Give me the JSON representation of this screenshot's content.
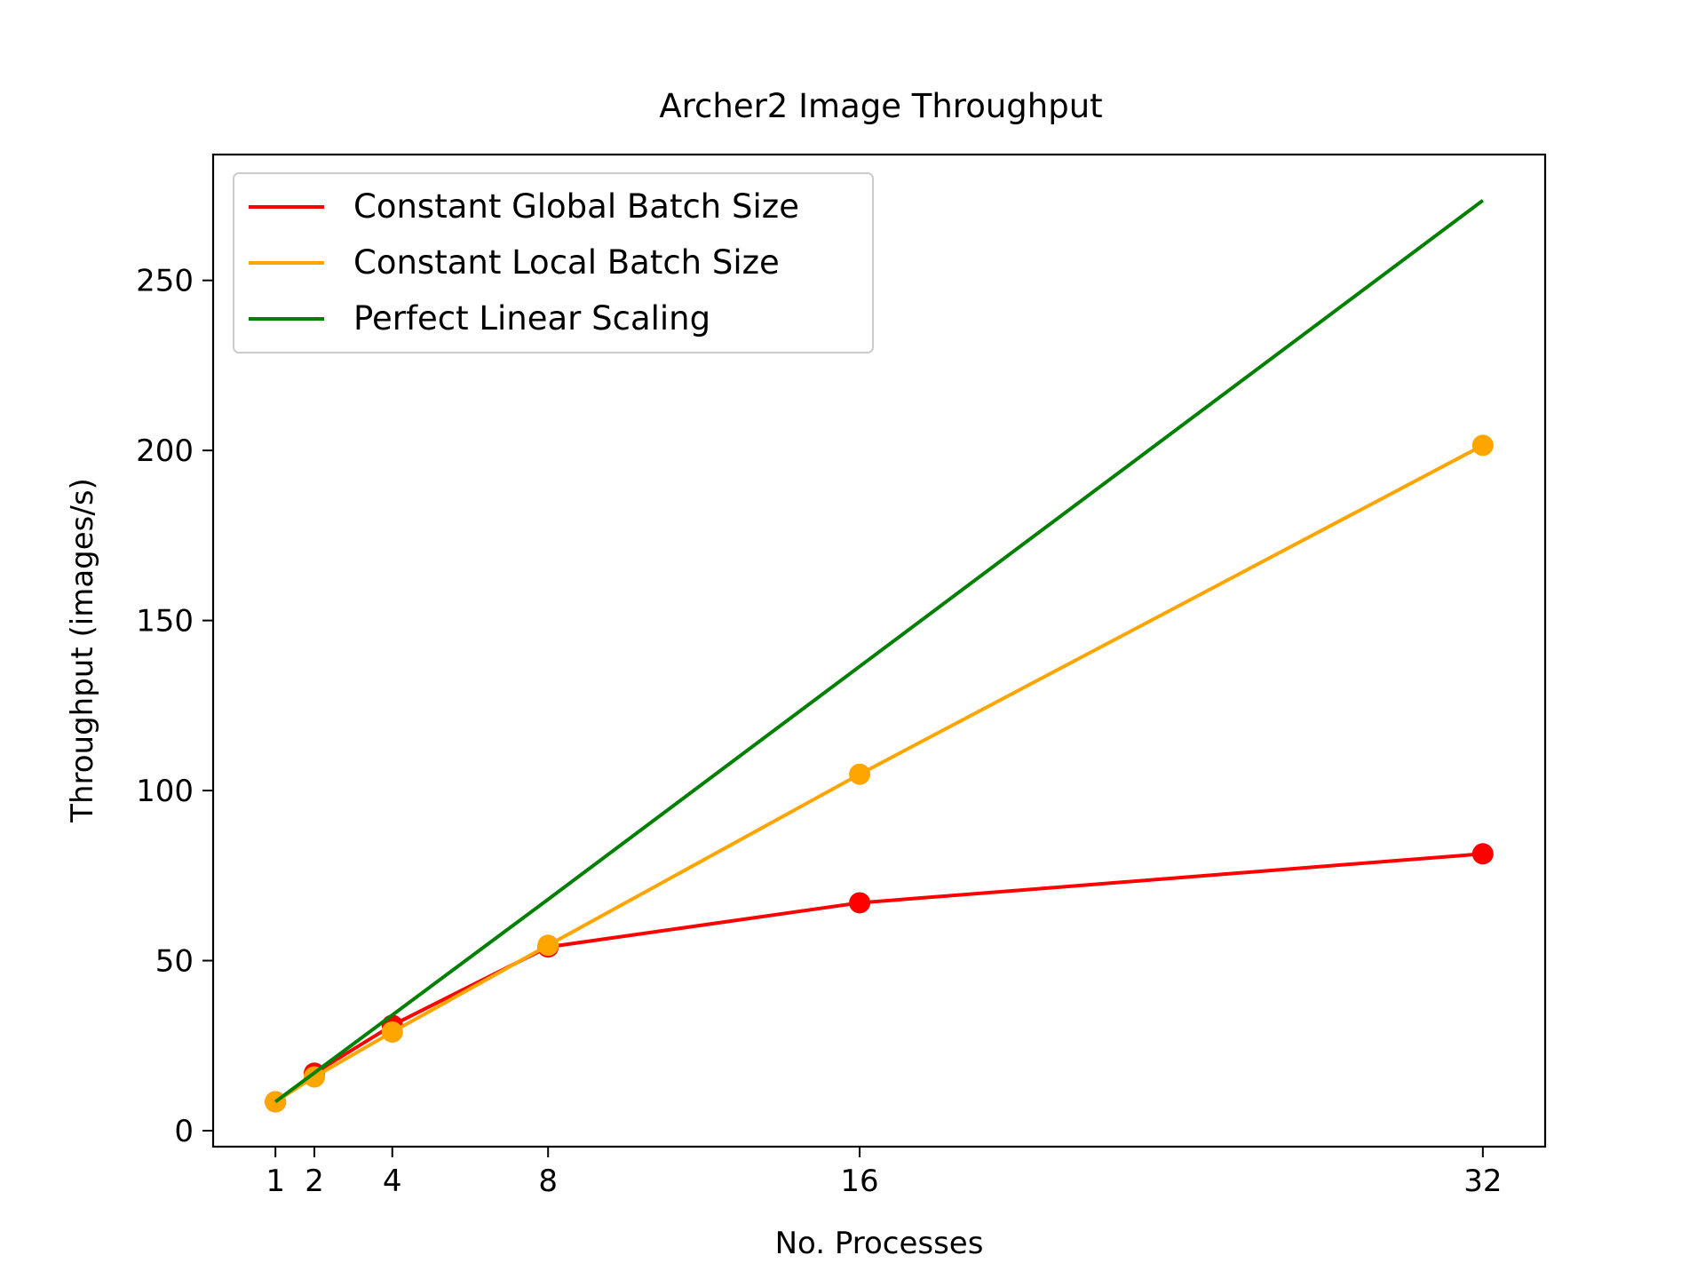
{
  "chart_data": {
    "type": "line",
    "title": "Archer2 Image Throughput",
    "xlabel": "No. Processes",
    "ylabel": "Throughput (images/s)",
    "x": [
      1,
      2,
      4,
      8,
      16,
      32
    ],
    "xticks": [
      1,
      2,
      4,
      8,
      16,
      32
    ],
    "yticks": [
      0,
      50,
      100,
      150,
      200,
      250
    ],
    "xlim": [
      -0.6,
      33.6
    ],
    "ylim": [
      -4.7,
      287
    ],
    "grid": false,
    "legend_position": "top-left",
    "series": [
      {
        "name": "Constant Global Batch Size",
        "color": "#ff0000",
        "markers": true,
        "values": [
          8.5,
          16.9,
          31.0,
          54.0,
          67.0,
          81.4
        ]
      },
      {
        "name": "Constant Local Batch Size",
        "color": "#ffa500",
        "markers": true,
        "values": [
          8.5,
          15.8,
          29.0,
          54.5,
          104.8,
          201.5
        ]
      },
      {
        "name": "Perfect Linear Scaling",
        "color": "#008000",
        "markers": false,
        "values": [
          8.5,
          17.0,
          34.0,
          68.0,
          136.5,
          273.5
        ]
      }
    ]
  }
}
